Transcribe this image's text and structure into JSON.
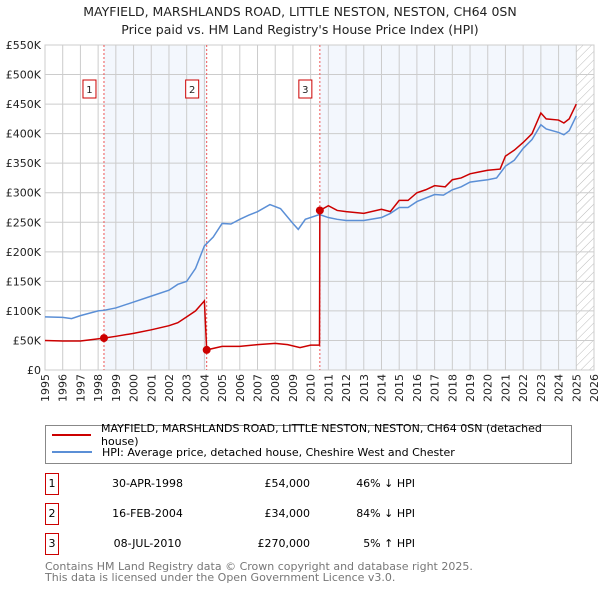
{
  "chart_data": {
    "type": "line",
    "title": "MAYFIELD, MARSHLANDS ROAD, LITTLE NESTON, NESTON, CH64 0SN",
    "subtitle": "Price paid vs. HM Land Registry's House Price Index (HPI)",
    "xlim": [
      1995,
      2026
    ],
    "ylim": [
      0,
      550000
    ],
    "x_ticks": [
      "1995",
      "1996",
      "1997",
      "1998",
      "1999",
      "2000",
      "2001",
      "2002",
      "2003",
      "2004",
      "2005",
      "2006",
      "2007",
      "2008",
      "2009",
      "2010",
      "2011",
      "2012",
      "2013",
      "2014",
      "2015",
      "2016",
      "2017",
      "2018",
      "2019",
      "2020",
      "2021",
      "2022",
      "2023",
      "2024",
      "2025",
      "2026"
    ],
    "y_ticks": [
      {
        "v": 0,
        "l": "£0"
      },
      {
        "v": 50000,
        "l": "£50K"
      },
      {
        "v": 100000,
        "l": "£100K"
      },
      {
        "v": 150000,
        "l": "£150K"
      },
      {
        "v": 200000,
        "l": "£200K"
      },
      {
        "v": 250000,
        "l": "£250K"
      },
      {
        "v": 300000,
        "l": "£300K"
      },
      {
        "v": 350000,
        "l": "£350K"
      },
      {
        "v": 400000,
        "l": "£400K"
      },
      {
        "v": 450000,
        "l": "£450K"
      },
      {
        "v": 500000,
        "l": "£500K"
      },
      {
        "v": 550000,
        "l": "£550K"
      }
    ],
    "grid": true,
    "forecast_start": 2025.0,
    "series": [
      {
        "name": "MAYFIELD, MARSHLANDS ROAD, LITTLE NESTON, NESTON, CH64 0SN (detached house)",
        "color": "#cc0000",
        "points": [
          [
            1995,
            50000
          ],
          [
            1996,
            49000
          ],
          [
            1997,
            49000
          ],
          [
            1998.33,
            54000
          ],
          [
            1999,
            57000
          ],
          [
            2000,
            62000
          ],
          [
            2001,
            68000
          ],
          [
            2002,
            75000
          ],
          [
            2002.5,
            80000
          ],
          [
            2003,
            90000
          ],
          [
            2003.5,
            100000
          ],
          [
            2004.0,
            117000
          ],
          [
            2004.13,
            34000
          ],
          [
            2005,
            40000
          ],
          [
            2006,
            40000
          ],
          [
            2007,
            43000
          ],
          [
            2008,
            45000
          ],
          [
            2008.7,
            43000
          ],
          [
            2009.4,
            38000
          ],
          [
            2010,
            42000
          ],
          [
            2010.5,
            42000
          ],
          [
            2010.52,
            270000
          ],
          [
            2011,
            278000
          ],
          [
            2011.5,
            270000
          ],
          [
            2012,
            268000
          ],
          [
            2013,
            265000
          ],
          [
            2014,
            272000
          ],
          [
            2014.5,
            268000
          ],
          [
            2015,
            287000
          ],
          [
            2015.5,
            287000
          ],
          [
            2016,
            300000
          ],
          [
            2016.5,
            305000
          ],
          [
            2017,
            312000
          ],
          [
            2017.6,
            310000
          ],
          [
            2018,
            322000
          ],
          [
            2018.5,
            325000
          ],
          [
            2019,
            332000
          ],
          [
            2019.5,
            335000
          ],
          [
            2020,
            338000
          ],
          [
            2020.7,
            340000
          ],
          [
            2021,
            362000
          ],
          [
            2021.5,
            372000
          ],
          [
            2022,
            385000
          ],
          [
            2022.5,
            400000
          ],
          [
            2023,
            435000
          ],
          [
            2023.3,
            425000
          ],
          [
            2024,
            423000
          ],
          [
            2024.3,
            418000
          ],
          [
            2024.6,
            425000
          ],
          [
            2025,
            450000
          ]
        ]
      },
      {
        "name": "HPI: Average price, detached house, Cheshire West and Chester",
        "color": "#5b8fd6",
        "points": [
          [
            1995,
            90000
          ],
          [
            1996,
            89000
          ],
          [
            1996.5,
            87000
          ],
          [
            1997,
            92000
          ],
          [
            1998,
            100000
          ],
          [
            1998.33,
            101000
          ],
          [
            1999,
            105000
          ],
          [
            2000,
            115000
          ],
          [
            2001,
            125000
          ],
          [
            2002,
            135000
          ],
          [
            2002.5,
            145000
          ],
          [
            2003,
            150000
          ],
          [
            2003.5,
            172000
          ],
          [
            2004,
            210000
          ],
          [
            2004.5,
            225000
          ],
          [
            2005,
            248000
          ],
          [
            2005.5,
            247000
          ],
          [
            2006,
            255000
          ],
          [
            2006.5,
            262000
          ],
          [
            2007,
            268000
          ],
          [
            2007.7,
            280000
          ],
          [
            2008.3,
            273000
          ],
          [
            2009,
            248000
          ],
          [
            2009.3,
            238000
          ],
          [
            2009.7,
            255000
          ],
          [
            2010.5,
            263000
          ],
          [
            2011,
            258000
          ],
          [
            2011.5,
            255000
          ],
          [
            2012,
            253000
          ],
          [
            2013,
            253000
          ],
          [
            2014,
            258000
          ],
          [
            2014.5,
            265000
          ],
          [
            2015,
            275000
          ],
          [
            2015.5,
            275000
          ],
          [
            2016,
            285000
          ],
          [
            2017,
            297000
          ],
          [
            2017.5,
            296000
          ],
          [
            2018,
            305000
          ],
          [
            2018.5,
            310000
          ],
          [
            2019,
            318000
          ],
          [
            2019.5,
            320000
          ],
          [
            2020,
            322000
          ],
          [
            2020.5,
            325000
          ],
          [
            2021,
            345000
          ],
          [
            2021.5,
            355000
          ],
          [
            2022,
            375000
          ],
          [
            2022.5,
            390000
          ],
          [
            2023,
            415000
          ],
          [
            2023.3,
            408000
          ],
          [
            2024,
            402000
          ],
          [
            2024.3,
            398000
          ],
          [
            2024.6,
            405000
          ],
          [
            2025,
            430000
          ]
        ]
      }
    ],
    "sales": [
      {
        "n": "1",
        "x": 1998.33,
        "y": 54000
      },
      {
        "n": "2",
        "x": 2004.13,
        "y": 34000
      },
      {
        "n": "3",
        "x": 2010.52,
        "y": 270000
      }
    ]
  },
  "legend": {
    "red": "MAYFIELD, MARSHLANDS ROAD, LITTLE NESTON, NESTON, CH64 0SN (detached house)",
    "blue": "HPI: Average price, detached house, Cheshire West and Chester"
  },
  "transactions": [
    {
      "n": "1",
      "date": "30-APR-1998",
      "price": "£54,000",
      "hpi": "46% ↓ HPI"
    },
    {
      "n": "2",
      "date": "16-FEB-2004",
      "price": "£34,000",
      "hpi": "84% ↓ HPI"
    },
    {
      "n": "3",
      "date": "08-JUL-2010",
      "price": "£270,000",
      "hpi": "5% ↑ HPI"
    }
  ],
  "footer": {
    "line1": "Contains HM Land Registry data © Crown copyright and database right 2025.",
    "line2": "This data is licensed under the Open Government Licence v3.0."
  }
}
